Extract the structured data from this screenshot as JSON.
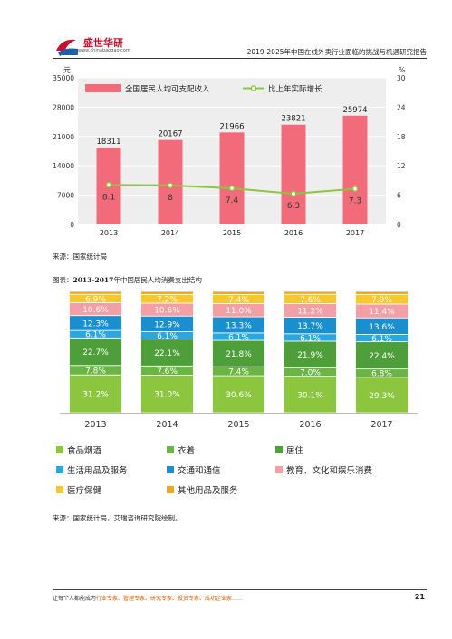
{
  "header": {
    "brand_name": "盛世华研",
    "brand_url": "www.chinabaogao.com",
    "report_title": "2019-2025年中国在线外卖行业面临的挑战与机遇研究报告"
  },
  "figure1": {
    "source": "来源：国家统计局"
  },
  "figure2": {
    "caption_prefix": "图表：",
    "caption_years": "2013-2017",
    "caption_rest": "年中国居民人均消费支出结构",
    "source": "来源：国家统计局，艾瑞咨询研究院绘制。"
  },
  "footer": {
    "text_prefix": "让每个人都能成为",
    "text_highlight": "行业专家、管理专家、研究专家、投资专家、成功企业家……",
    "page_number": "21"
  },
  "chart_data": [
    {
      "type": "bar",
      "left_unit": "元",
      "right_unit": "%",
      "categories": [
        "2013",
        "2014",
        "2015",
        "2016",
        "2017"
      ],
      "series": [
        {
          "name": "全国居民人均可支配收入",
          "kind": "bar",
          "axis": "left",
          "color": "#f26b7a",
          "values": [
            18311,
            20167,
            21966,
            23821,
            25974
          ]
        },
        {
          "name": "比上年实际增长",
          "kind": "line",
          "axis": "right",
          "color": "#8cc63f",
          "values": [
            8.1,
            8.0,
            7.4,
            6.3,
            7.3
          ]
        }
      ],
      "left_ticks": [
        0,
        7000,
        14000,
        21000,
        28000,
        35000
      ],
      "right_ticks": [
        0,
        6,
        12,
        18,
        24,
        30
      ],
      "ylim_left": [
        0,
        35000
      ],
      "ylim_right": [
        0,
        30
      ],
      "grid": true,
      "legend_position": "top-left"
    },
    {
      "type": "bar",
      "stacked": true,
      "categories": [
        "2013",
        "2014",
        "2015",
        "2016",
        "2017"
      ],
      "series": [
        {
          "name": "食品烟酒",
          "color": "#8cc63f",
          "values": [
            "31.2%",
            "31.0%",
            "30.6%",
            "30.1%",
            "29.3%"
          ],
          "numeric": [
            31.2,
            31.0,
            30.6,
            30.1,
            29.3
          ]
        },
        {
          "name": "衣着",
          "color": "#6ab544",
          "values": [
            "7.8%",
            "7.6%",
            "7.4%",
            "7.0%",
            "6.8%"
          ],
          "numeric": [
            7.8,
            7.6,
            7.4,
            7.0,
            6.8
          ]
        },
        {
          "name": "居住",
          "color": "#4e9e3a",
          "values": [
            "22.7%",
            "22.1%",
            "21.8%",
            "21.9%",
            "22.4%"
          ],
          "numeric": [
            22.7,
            22.1,
            21.8,
            21.9,
            22.4
          ]
        },
        {
          "name": "生活用品及服务",
          "color": "#2aa7de",
          "values": [
            "6.1%",
            "6.1%",
            "6.1%",
            "6.1%",
            "6.1%"
          ],
          "numeric": [
            6.1,
            6.1,
            6.1,
            6.1,
            6.1
          ]
        },
        {
          "name": "交通和通信",
          "color": "#1a8fd0",
          "values": [
            "12.3%",
            "12.9%",
            "13.3%",
            "13.7%",
            "13.6%"
          ],
          "numeric": [
            12.3,
            12.9,
            13.3,
            13.7,
            13.6
          ]
        },
        {
          "name": "教育、文化和娱乐消费",
          "color": "#f2a0a6",
          "values": [
            "10.6%",
            "10.6%",
            "11.0%",
            "11.2%",
            "11.4%"
          ],
          "numeric": [
            10.6,
            10.6,
            11.0,
            11.2,
            11.4
          ]
        },
        {
          "name": "医疗保健",
          "color": "#f6c72e",
          "values": [
            "6.9%",
            "7.2%",
            "7.4%",
            "7.6%",
            "7.9%"
          ],
          "numeric": [
            6.9,
            7.2,
            7.4,
            7.6,
            7.9
          ]
        },
        {
          "name": "其他用品及服务",
          "color": "#f0a81e",
          "values": [
            "",
            "",
            "",
            "",
            ""
          ],
          "numeric": [
            2.4,
            2.5,
            2.6,
            2.4,
            2.5
          ]
        }
      ],
      "legend_position": "bottom"
    }
  ]
}
